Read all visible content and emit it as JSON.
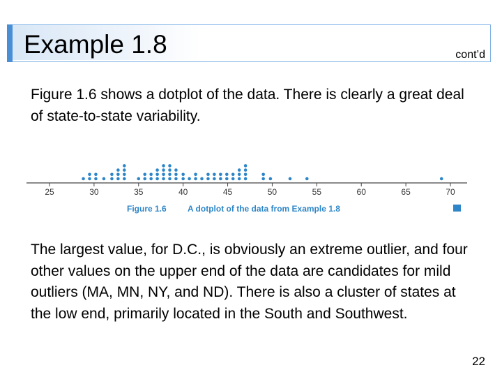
{
  "slide": {
    "title": "Example 1.8",
    "contd": "cont’d",
    "paragraph1": "Figure 1.6 shows a dotplot of the data. There is clearly a great deal of state-to-state variability.",
    "paragraph2": "The largest value, for D.C., is obviously an extreme outlier, and four other values on the upper end of the data are candidates for mild outliers (MA, MN, NY, and ND). There is also a cluster of states at the low end, primarily located in the South and Southwest.",
    "page_number": "22"
  },
  "chart_data": {
    "type": "scatter",
    "subtype": "dotplot",
    "caption_label": "Figure 1.6",
    "caption_text": "A dotplot of the data from Example 1.8",
    "xlim": [
      25,
      70
    ],
    "x_ticks": [
      25,
      30,
      35,
      40,
      45,
      50,
      55,
      60,
      65,
      70
    ],
    "x_tick_labels": [
      "25",
      "30",
      "35",
      "40",
      "45",
      "50",
      "55",
      "60",
      "65",
      "70"
    ],
    "grid": false,
    "stacks": [
      {
        "x": 28.8,
        "count": 1
      },
      {
        "x": 29.5,
        "count": 2
      },
      {
        "x": 30.2,
        "count": 2
      },
      {
        "x": 31.1,
        "count": 1
      },
      {
        "x": 32.0,
        "count": 2
      },
      {
        "x": 32.7,
        "count": 3
      },
      {
        "x": 33.4,
        "count": 4
      },
      {
        "x": 35.0,
        "count": 1
      },
      {
        "x": 35.7,
        "count": 2
      },
      {
        "x": 36.4,
        "count": 2
      },
      {
        "x": 37.1,
        "count": 3
      },
      {
        "x": 37.8,
        "count": 4
      },
      {
        "x": 38.5,
        "count": 4
      },
      {
        "x": 39.2,
        "count": 3
      },
      {
        "x": 40.0,
        "count": 2
      },
      {
        "x": 40.7,
        "count": 1
      },
      {
        "x": 41.4,
        "count": 2
      },
      {
        "x": 42.1,
        "count": 1
      },
      {
        "x": 42.8,
        "count": 2
      },
      {
        "x": 43.5,
        "count": 2
      },
      {
        "x": 44.2,
        "count": 2
      },
      {
        "x": 44.9,
        "count": 2
      },
      {
        "x": 45.6,
        "count": 2
      },
      {
        "x": 46.3,
        "count": 3
      },
      {
        "x": 47.0,
        "count": 4
      },
      {
        "x": 49.0,
        "count": 2
      },
      {
        "x": 49.8,
        "count": 1
      },
      {
        "x": 52.0,
        "count": 1
      },
      {
        "x": 53.9,
        "count": 1
      },
      {
        "x": 69.0,
        "count": 1
      }
    ],
    "colors": {
      "dots": "#2e86c8",
      "caption": "#2e86c8",
      "axis": "#444444"
    }
  }
}
